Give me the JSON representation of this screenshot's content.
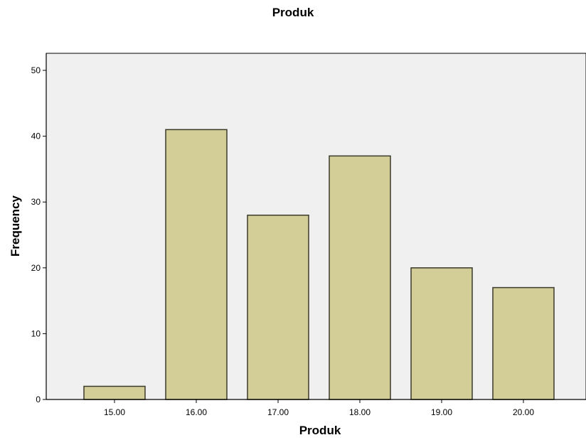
{
  "chart_data": {
    "type": "bar",
    "title": "Produk",
    "xlabel": "Produk",
    "ylabel": "Frequency",
    "categories": [
      "15.00",
      "16.00",
      "17.00",
      "18.00",
      "19.00",
      "20.00"
    ],
    "values": [
      2,
      41,
      28,
      37,
      20,
      17
    ],
    "ylim": [
      0,
      50
    ],
    "yticks": [
      "0",
      "10",
      "20",
      "30",
      "40",
      "50"
    ],
    "grid": false,
    "legend": "none",
    "colors": {
      "bar_fill": "#d3ce97",
      "bar_stroke": "#3a3a2a",
      "plot_background": "#f0f0f0",
      "axis": "#000000"
    }
  }
}
